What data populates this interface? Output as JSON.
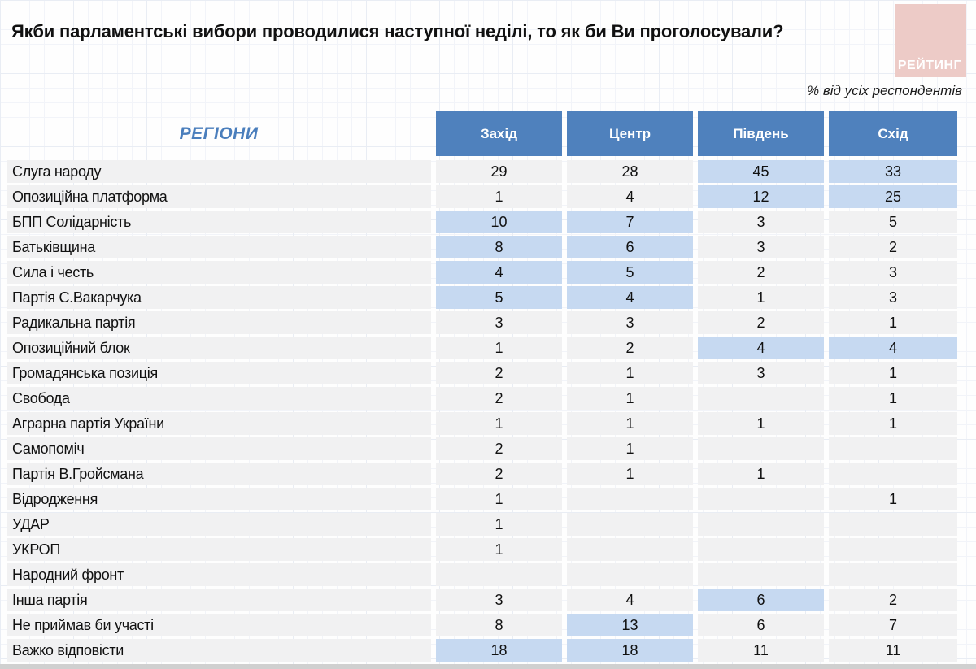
{
  "logo": {
    "text": "РЕЙТИНГ"
  },
  "colors": {
    "header_blue": "#4f81bd",
    "highlight_blue": "#c6d9f1",
    "row_gray": "#f1f1f2",
    "regions_blue": "#4a7ebc",
    "logo_pink": "#edcbc7",
    "grid_light": "#f2f4f9",
    "grid_strong": "#e9edf4"
  },
  "chart_data": {
    "type": "table",
    "title": "Якби парламентські вибори проводилися наступної неділі, то як би Ви проголосували?",
    "subtitle": "% від усіх респондентів",
    "corner_label": "РЕГІОНИ",
    "columns": [
      "Захід",
      "Центр",
      "Південь",
      "Схід"
    ],
    "rows": [
      {
        "label": "Слуга народу",
        "values": [
          29,
          28,
          45,
          33
        ],
        "highlight": [
          false,
          false,
          true,
          true
        ]
      },
      {
        "label": "Опозиційна платформа",
        "values": [
          1,
          4,
          12,
          25
        ],
        "highlight": [
          false,
          false,
          true,
          true
        ]
      },
      {
        "label": "БПП Солідарність",
        "values": [
          10,
          7,
          3,
          5
        ],
        "highlight": [
          true,
          true,
          false,
          false
        ]
      },
      {
        "label": "Батьківщина",
        "values": [
          8,
          6,
          3,
          2
        ],
        "highlight": [
          true,
          true,
          false,
          false
        ]
      },
      {
        "label": "Сила і честь",
        "values": [
          4,
          5,
          2,
          3
        ],
        "highlight": [
          true,
          true,
          false,
          false
        ]
      },
      {
        "label": "Партія С.Вакарчука",
        "values": [
          5,
          4,
          1,
          3
        ],
        "highlight": [
          true,
          true,
          false,
          false
        ]
      },
      {
        "label": "Радикальна партія",
        "values": [
          3,
          3,
          2,
          1
        ],
        "highlight": [
          false,
          false,
          false,
          false
        ]
      },
      {
        "label": "Опозиційний блок",
        "values": [
          1,
          2,
          4,
          4
        ],
        "highlight": [
          false,
          false,
          true,
          true
        ]
      },
      {
        "label": "Громадянська позиція",
        "values": [
          2,
          1,
          3,
          1
        ],
        "highlight": [
          false,
          false,
          false,
          false
        ]
      },
      {
        "label": "Свобода",
        "values": [
          2,
          1,
          null,
          1
        ],
        "highlight": [
          false,
          false,
          false,
          false
        ]
      },
      {
        "label": "Аграрна партія України",
        "values": [
          1,
          1,
          1,
          1
        ],
        "highlight": [
          false,
          false,
          false,
          false
        ]
      },
      {
        "label": "Самопоміч",
        "values": [
          2,
          1,
          null,
          null
        ],
        "highlight": [
          false,
          false,
          false,
          false
        ]
      },
      {
        "label": "Партія В.Гройсмана",
        "values": [
          2,
          1,
          1,
          null
        ],
        "highlight": [
          false,
          false,
          false,
          false
        ]
      },
      {
        "label": "Відродження",
        "values": [
          1,
          null,
          null,
          1
        ],
        "highlight": [
          false,
          false,
          false,
          false
        ]
      },
      {
        "label": "УДАР",
        "values": [
          1,
          null,
          null,
          null
        ],
        "highlight": [
          false,
          false,
          false,
          false
        ]
      },
      {
        "label": "УКРОП",
        "values": [
          1,
          null,
          null,
          null
        ],
        "highlight": [
          false,
          false,
          false,
          false
        ]
      },
      {
        "label": "Народний фронт",
        "values": [
          null,
          null,
          null,
          null
        ],
        "highlight": [
          false,
          false,
          false,
          false
        ]
      },
      {
        "label": "Інша партія",
        "values": [
          3,
          4,
          6,
          2
        ],
        "highlight": [
          false,
          false,
          true,
          false
        ]
      },
      {
        "label": "Не приймав би участі",
        "values": [
          8,
          13,
          6,
          7
        ],
        "highlight": [
          false,
          true,
          false,
          false
        ]
      },
      {
        "label": "Важко відповісти",
        "values": [
          18,
          18,
          11,
          11
        ],
        "highlight": [
          true,
          true,
          false,
          false
        ]
      }
    ]
  }
}
